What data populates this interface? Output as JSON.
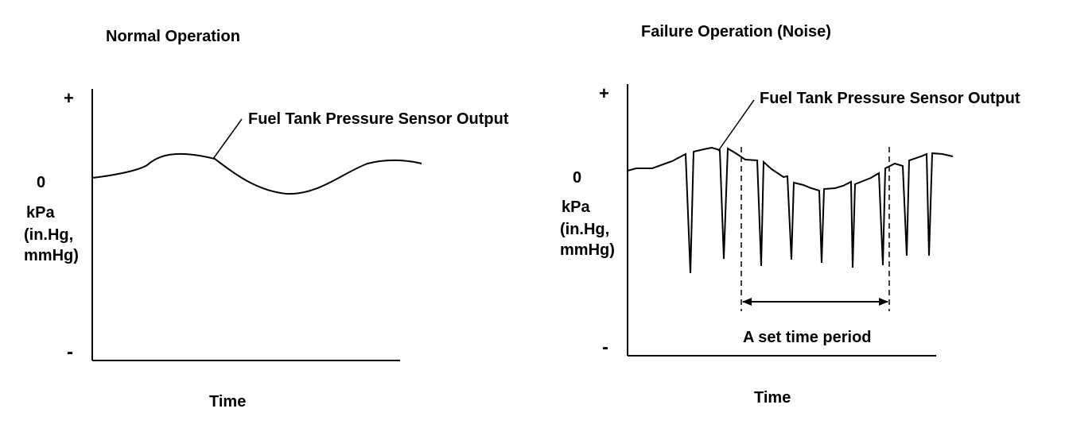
{
  "colors": {
    "background": "#ffffff",
    "ink": "#000000"
  },
  "normal": {
    "title": "Normal Operation",
    "plus": "+",
    "zero": "0",
    "unit_line1": "kPa",
    "unit_line2": "(in.Hg,",
    "unit_line3": "mmHg)",
    "minus": "-",
    "signal_label": "Fuel Tank Pressure Sensor Output",
    "time_label": "Time"
  },
  "failure": {
    "title": "Failure Operation (Noise)",
    "plus": "+",
    "zero": "0",
    "unit_line1": "kPa",
    "unit_line2": "(in.Hg,",
    "unit_line3": "mmHg)",
    "minus": "-",
    "signal_label": "Fuel Tank Pressure Sensor Output",
    "period_label": "A set time period",
    "time_label": "Time"
  }
}
